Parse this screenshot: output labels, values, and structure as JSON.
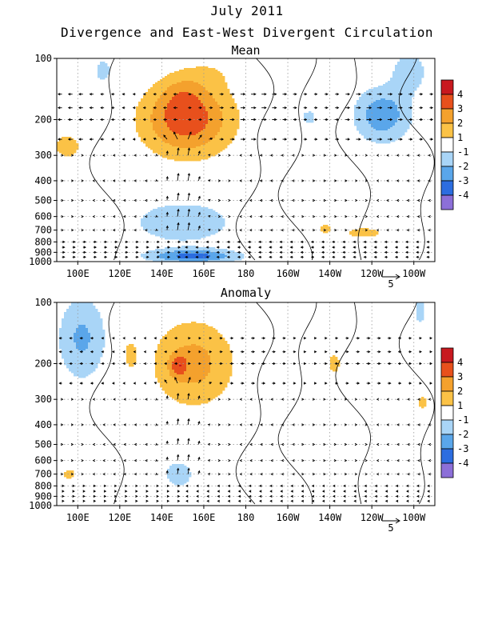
{
  "title": "July 2011",
  "subtitle": "Divergence and East-West Divergent Circulation",
  "colorbar": {
    "colors": [
      "#c8191f",
      "#e8501c",
      "#f4a12d",
      "#fbc246",
      "#ffffff",
      "#a9d5f7",
      "#5aa6ea",
      "#2c6de0",
      "#8c6fd8"
    ],
    "labels": [
      "4",
      "3",
      "2",
      "1",
      "-1",
      "-2",
      "-3",
      "-4"
    ]
  },
  "chart_data": [
    {
      "type": "heatmap",
      "panel_title": "Mean",
      "x_ticks": [
        "100E",
        "120E",
        "140E",
        "160E",
        "180",
        "160W",
        "140W",
        "120W",
        "100W"
      ],
      "x_tick_lon": [
        100,
        120,
        140,
        160,
        180,
        200,
        220,
        240,
        260
      ],
      "xlim": [
        90,
        270
      ],
      "y_ticks": [
        "100",
        "200",
        "300",
        "400",
        "500",
        "600",
        "700",
        "800",
        "900",
        "1000"
      ],
      "y_tick_p": [
        100,
        200,
        300,
        400,
        500,
        600,
        700,
        800,
        900,
        1000
      ],
      "ylim": [
        1000,
        100
      ],
      "y_scale": "log",
      "vector_ref": "5",
      "blobs": [
        {
          "lon": 152,
          "p": 200,
          "rx": 22,
          "rp": 0.42,
          "v": 3.6
        },
        {
          "lon": 150,
          "p": 150,
          "rx": 10,
          "rp": 0.25,
          "v": 0.9
        },
        {
          "lon": 165,
          "p": 115,
          "rx": 14,
          "rp": 0.2,
          "v": 0.6
        },
        {
          "lon": 95,
          "p": 270,
          "rx": 6,
          "rp": 0.13,
          "v": 2.0
        },
        {
          "lon": 245,
          "p": 190,
          "rx": 14,
          "rp": 0.32,
          "v": -2.7
        },
        {
          "lon": 258,
          "p": 115,
          "rx": 9,
          "rp": 0.25,
          "v": -1.6
        },
        {
          "lon": 112,
          "p": 115,
          "rx": 6,
          "rp": 0.2,
          "v": -1.3
        },
        {
          "lon": 210,
          "p": 195,
          "rx": 5,
          "rp": 0.12,
          "v": -1.3
        },
        {
          "lon": 150,
          "p": 640,
          "rx": 24,
          "rp": 0.24,
          "v": -2.0
        },
        {
          "lon": 155,
          "p": 940,
          "rx": 22,
          "rp": 0.08,
          "v": -3.3
        },
        {
          "lon": 218,
          "p": 690,
          "rx": 3,
          "rp": 0.05,
          "v": 1.9
        },
        {
          "lon": 236,
          "p": 720,
          "rx": 9,
          "rp": 0.06,
          "v": 1.8
        }
      ]
    },
    {
      "type": "heatmap",
      "panel_title": "Anomaly",
      "x_ticks": [
        "100E",
        "120E",
        "140E",
        "160E",
        "180",
        "160W",
        "140W",
        "120W",
        "100W"
      ],
      "x_tick_lon": [
        100,
        120,
        140,
        160,
        180,
        200,
        220,
        240,
        260
      ],
      "xlim": [
        90,
        270
      ],
      "y_ticks": [
        "100",
        "200",
        "300",
        "400",
        "500",
        "600",
        "700",
        "800",
        "900",
        "1000"
      ],
      "y_tick_p": [
        100,
        200,
        300,
        400,
        500,
        600,
        700,
        800,
        900,
        1000
      ],
      "ylim": [
        1000,
        100
      ],
      "y_scale": "log",
      "vector_ref": "5",
      "blobs": [
        {
          "lon": 155,
          "p": 200,
          "rx": 20,
          "rp": 0.5,
          "v": 2.4
        },
        {
          "lon": 148,
          "p": 205,
          "rx": 4,
          "rp": 0.12,
          "v": 1.9
        },
        {
          "lon": 125,
          "p": 180,
          "rx": 3,
          "rp": 0.15,
          "v": 1.7
        },
        {
          "lon": 222,
          "p": 200,
          "rx": 3,
          "rp": 0.12,
          "v": 1.8
        },
        {
          "lon": 264,
          "p": 310,
          "rx": 2.5,
          "rp": 0.08,
          "v": 1.8
        },
        {
          "lon": 102,
          "p": 150,
          "rx": 12,
          "rp": 0.5,
          "v": -2.2
        },
        {
          "lon": 263,
          "p": 110,
          "rx": 3,
          "rp": 0.2,
          "v": -1.5
        },
        {
          "lon": 148,
          "p": 700,
          "rx": 8,
          "rp": 0.18,
          "v": -1.6
        },
        {
          "lon": 96,
          "p": 700,
          "rx": 3,
          "rp": 0.06,
          "v": 1.8
        }
      ]
    }
  ]
}
